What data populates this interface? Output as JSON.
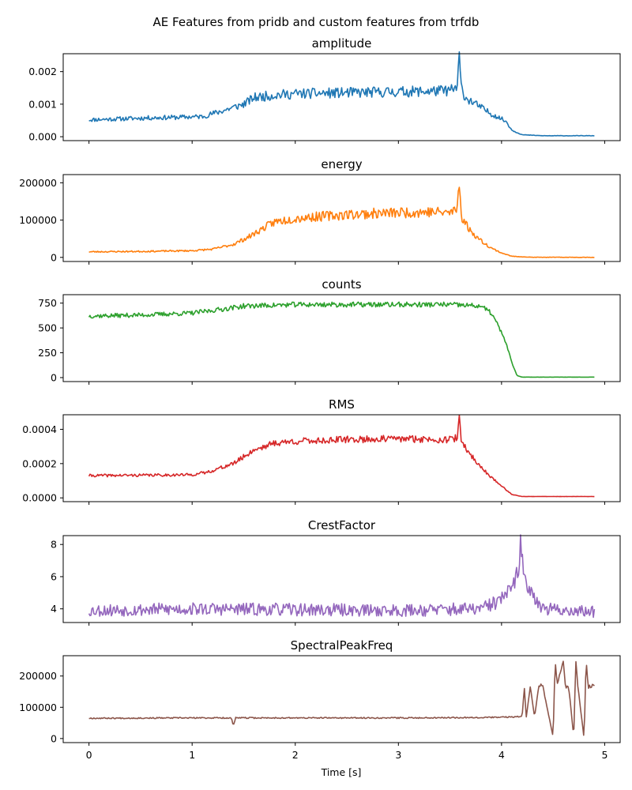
{
  "figure": {
    "suptitle": "AE Features from pridb and custom features from trfdb",
    "xlabel": "Time [s]"
  },
  "chart_data": [
    {
      "type": "line",
      "title": "amplitude",
      "color": "#1f77b4",
      "xlim": [
        -0.25,
        5.15
      ],
      "ylim": [
        -0.00012,
        0.00255
      ],
      "yticks": [
        0.0,
        0.001,
        0.002
      ],
      "ytick_labels": [
        "0.000",
        "0.001",
        "0.002"
      ],
      "xticks": [
        0,
        1,
        2,
        3,
        4,
        5
      ],
      "xtick_labels": [],
      "noise": 0.12,
      "seed": 11,
      "x": [
        0.0,
        0.3,
        0.6,
        0.9,
        1.1,
        1.3,
        1.5,
        1.6,
        1.8,
        2.0,
        2.5,
        3.0,
        3.3,
        3.5,
        3.57,
        3.59,
        3.61,
        3.65,
        3.8,
        3.9,
        4.0,
        4.05,
        4.1,
        4.2,
        4.4,
        4.9
      ],
      "y": [
        0.00052,
        0.00055,
        0.00058,
        0.0006,
        0.00062,
        0.0008,
        0.001,
        0.0012,
        0.00128,
        0.00132,
        0.00135,
        0.00138,
        0.0014,
        0.00142,
        0.0015,
        0.00245,
        0.0015,
        0.0012,
        0.0009,
        0.0007,
        0.00055,
        0.00045,
        0.0002,
        6e-05,
        3e-05,
        3e-05
      ]
    },
    {
      "type": "line",
      "title": "energy",
      "color": "#ff7f0e",
      "xlim": [
        -0.25,
        5.15
      ],
      "ylim": [
        -11000,
        222000
      ],
      "yticks": [
        0,
        100000,
        200000
      ],
      "ytick_labels": [
        "0",
        "100000",
        "200000"
      ],
      "xticks": [
        0,
        1,
        2,
        3,
        4,
        5
      ],
      "xtick_labels": [],
      "noise": 0.12,
      "seed": 23,
      "x": [
        0.0,
        0.5,
        1.0,
        1.2,
        1.4,
        1.55,
        1.7,
        1.8,
        2.0,
        2.5,
        3.0,
        3.3,
        3.5,
        3.57,
        3.59,
        3.61,
        3.7,
        3.8,
        3.9,
        4.0,
        4.1,
        4.3,
        4.9
      ],
      "y": [
        15000,
        16000,
        18000,
        22000,
        35000,
        55000,
        80000,
        95000,
        105000,
        115000,
        120000,
        122000,
        120000,
        130000,
        212000,
        110000,
        70000,
        45000,
        25000,
        12000,
        3000,
        300,
        200
      ]
    },
    {
      "type": "line",
      "title": "counts",
      "color": "#2ca02c",
      "xlim": [
        -0.25,
        5.15
      ],
      "ylim": [
        -40,
        835
      ],
      "yticks": [
        0,
        250,
        500,
        750
      ],
      "ytick_labels": [
        "0",
        "250",
        "500",
        "750"
      ],
      "xticks": [
        0,
        1,
        2,
        3,
        4,
        5
      ],
      "xtick_labels": [],
      "noise": 0.035,
      "seed": 37,
      "x": [
        0.0,
        0.5,
        1.0,
        1.3,
        1.5,
        2.0,
        3.0,
        3.5,
        3.8,
        3.9,
        3.95,
        4.0,
        4.05,
        4.1,
        4.15,
        4.2,
        4.9
      ],
      "y": [
        620,
        630,
        650,
        690,
        720,
        735,
        735,
        735,
        720,
        650,
        560,
        450,
        330,
        150,
        20,
        5,
        5
      ]
    },
    {
      "type": "line",
      "title": "RMS",
      "color": "#d62728",
      "xlim": [
        -0.25,
        5.15
      ],
      "ylim": [
        -2.2e-05,
        0.000485
      ],
      "yticks": [
        0.0,
        0.0002,
        0.0004
      ],
      "ytick_labels": [
        "0.0000",
        "0.0002",
        "0.0004"
      ],
      "xticks": [
        0,
        1,
        2,
        3,
        4,
        5
      ],
      "xtick_labels": [],
      "noise": 0.06,
      "seed": 41,
      "x": [
        0.0,
        0.5,
        1.0,
        1.15,
        1.4,
        1.6,
        1.8,
        2.0,
        2.5,
        3.0,
        3.5,
        3.57,
        3.59,
        3.61,
        3.7,
        3.8,
        3.9,
        4.0,
        4.1,
        4.2,
        4.9
      ],
      "y": [
        0.00013,
        0.000132,
        0.000135,
        0.00015,
        0.0002,
        0.00028,
        0.00032,
        0.00033,
        0.00034,
        0.000345,
        0.00034,
        0.00035,
        0.00046,
        0.00033,
        0.00025,
        0.00018,
        0.00012,
        7e-05,
        2e-05,
        8e-06,
        8e-06
      ]
    },
    {
      "type": "line",
      "title": "CrestFactor",
      "color": "#9467bd",
      "xlim": [
        -0.25,
        5.15
      ],
      "ylim": [
        3.15,
        8.55
      ],
      "yticks": [
        4,
        6,
        8
      ],
      "ytick_labels": [
        "4",
        "6",
        "8"
      ],
      "xticks": [
        0,
        1,
        2,
        3,
        4,
        5
      ],
      "xtick_labels": [],
      "noise": 0.1,
      "seed": 53,
      "x": [
        0.0,
        1.0,
        2.0,
        3.0,
        3.8,
        3.95,
        4.1,
        4.17,
        4.19,
        4.21,
        4.3,
        4.4,
        4.9
      ],
      "y": [
        3.9,
        4.0,
        3.95,
        3.9,
        4.0,
        4.4,
        5.2,
        6.5,
        8.4,
        6.0,
        5.0,
        4.0,
        3.8
      ]
    },
    {
      "type": "line",
      "title": "SpectralPeakFreq",
      "color": "#8c564b",
      "xlim": [
        -0.25,
        5.15
      ],
      "ylim": [
        -13000,
        265000
      ],
      "yticks": [
        0,
        100000,
        200000
      ],
      "ytick_labels": [
        "0",
        "100000",
        "200000"
      ],
      "xticks": [
        0,
        1,
        2,
        3,
        4,
        5
      ],
      "xtick_labels": [
        "0",
        "1",
        "2",
        "3",
        "4",
        "5"
      ],
      "noise": 0.03,
      "seed": 67,
      "x": [
        0.0,
        1.0,
        1.38,
        1.4,
        1.42,
        2.0,
        3.0,
        4.0,
        4.2,
        4.22,
        4.24,
        4.28,
        4.32,
        4.36,
        4.4,
        4.5,
        4.52,
        4.54,
        4.6,
        4.62,
        4.65,
        4.7,
        4.72,
        4.74,
        4.8,
        4.82,
        4.84,
        4.9
      ],
      "y": [
        65000,
        66000,
        66000,
        40000,
        66000,
        66000,
        66000,
        68000,
        70000,
        165000,
        70000,
        170000,
        68000,
        170000,
        170000,
        5000,
        250000,
        170000,
        250000,
        160000,
        170000,
        5000,
        250000,
        170000,
        0,
        250000,
        165000,
        170000
      ]
    }
  ]
}
